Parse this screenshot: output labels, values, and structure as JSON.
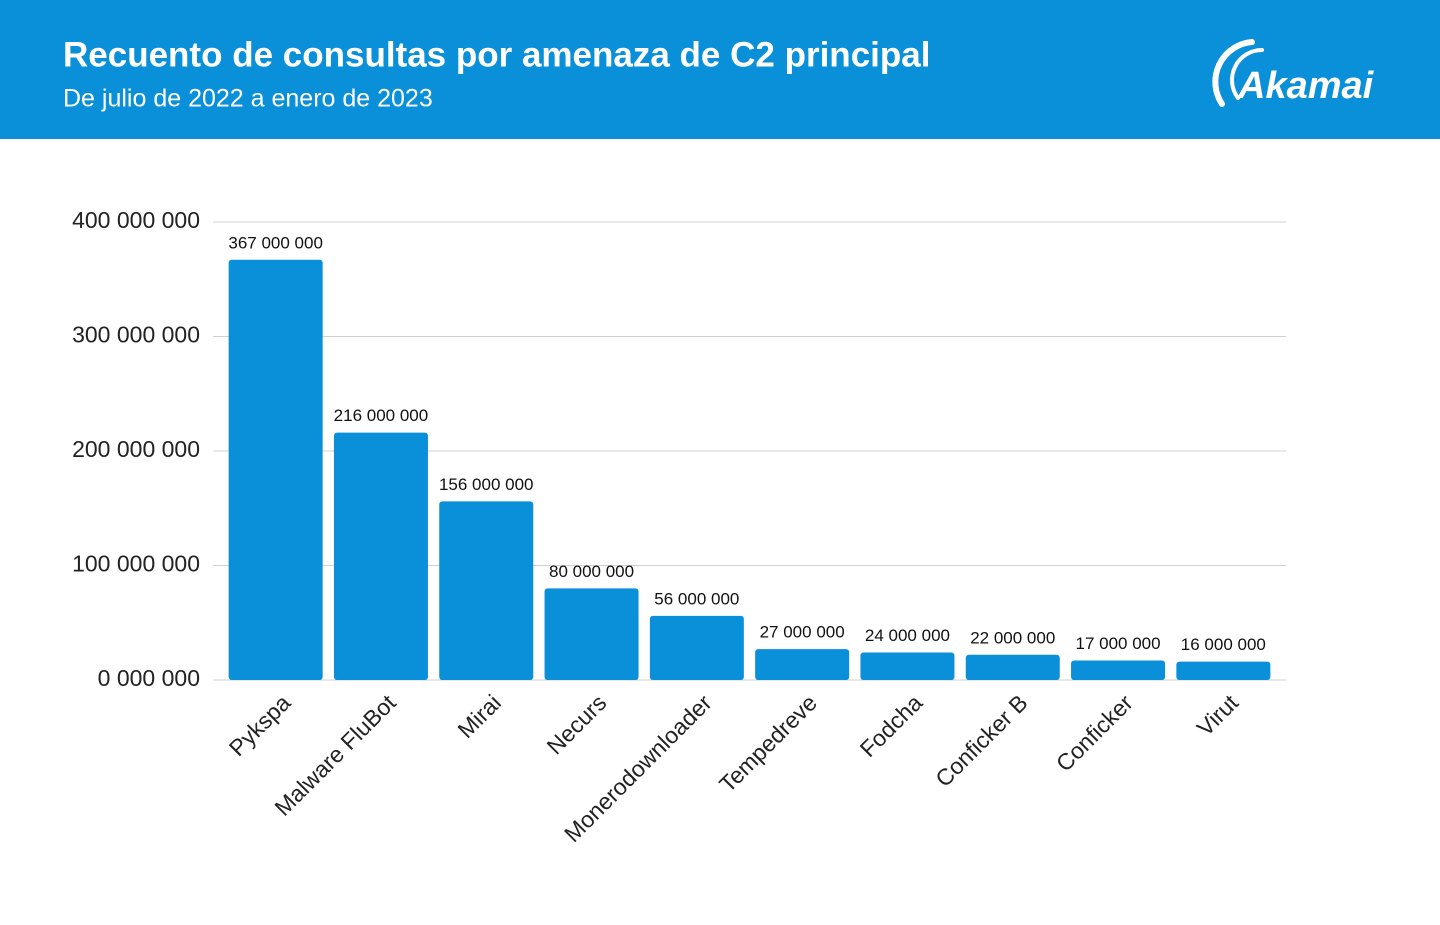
{
  "brand": "Akamai",
  "chart_data": {
    "type": "bar",
    "title": "Recuento de consultas por amenaza de C2 principal",
    "subtitle": "De julio de 2022 a enero de 2023",
    "categories": [
      "Pykspa",
      "Malware FluBot",
      "Mirai",
      "Necurs",
      "Monerodownloader",
      "Tempedreve",
      "Fodcha",
      "Conficker B",
      "Conficker",
      "Virut"
    ],
    "values": [
      367000000,
      216000000,
      156000000,
      80000000,
      56000000,
      27000000,
      24000000,
      22000000,
      17000000,
      16000000
    ],
    "value_labels": [
      "367 000 000",
      "216 000 000",
      "156 000 000",
      "80 000 000",
      "56 000 000",
      "27 000 000",
      "24 000 000",
      "22 000 000",
      "17 000 000",
      "16 000 000"
    ],
    "color": "#0a8fd9",
    "ylim": [
      0,
      400000000
    ],
    "yticks": [
      {
        "value": 0,
        "label": "0 000 000"
      },
      {
        "value": 100000000,
        "label": "100 000 000"
      },
      {
        "value": 200000000,
        "label": "200 000 000"
      },
      {
        "value": 300000000,
        "label": "300 000 000"
      },
      {
        "value": 400000000,
        "label": "400 000 000"
      }
    ],
    "grid": true
  }
}
